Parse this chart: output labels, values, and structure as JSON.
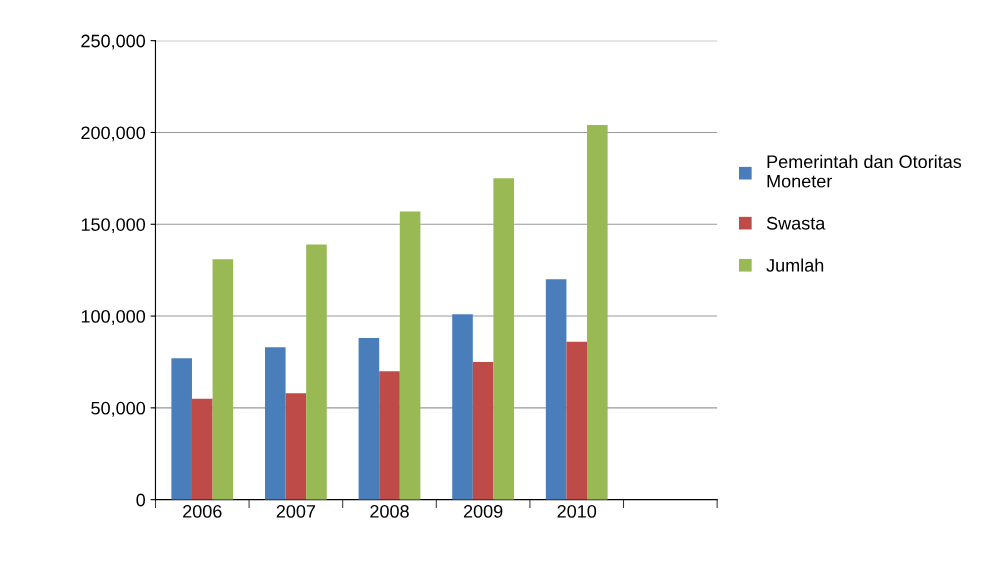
{
  "chart_data": {
    "type": "bar",
    "categories": [
      "2006",
      "2007",
      "2008",
      "2009",
      "2010",
      null
    ],
    "series": [
      {
        "name": "Pemerintah dan Otoritas Moneter",
        "color": "#4a7ebb",
        "values": [
          77000,
          83000,
          88000,
          101000,
          120000,
          null
        ]
      },
      {
        "name": "Swasta",
        "color": "#be4b48",
        "values": [
          55000,
          58000,
          70000,
          75000,
          86000,
          null
        ]
      },
      {
        "name": "Jumlah",
        "color": "#98b954",
        "values": [
          131000,
          139000,
          157000,
          175000,
          204000,
          null
        ]
      }
    ],
    "ylim": [
      0,
      250000
    ],
    "yticks": [
      {
        "value": 0,
        "label": "0"
      },
      {
        "value": 50000,
        "label": "50,000"
      },
      {
        "value": 100000,
        "label": "100,000"
      },
      {
        "value": 150000,
        "label": "150,000"
      },
      {
        "value": 200000,
        "label": "200,000"
      },
      {
        "value": 250000,
        "label": "250,000"
      }
    ],
    "grid": "y",
    "legend": "right"
  }
}
